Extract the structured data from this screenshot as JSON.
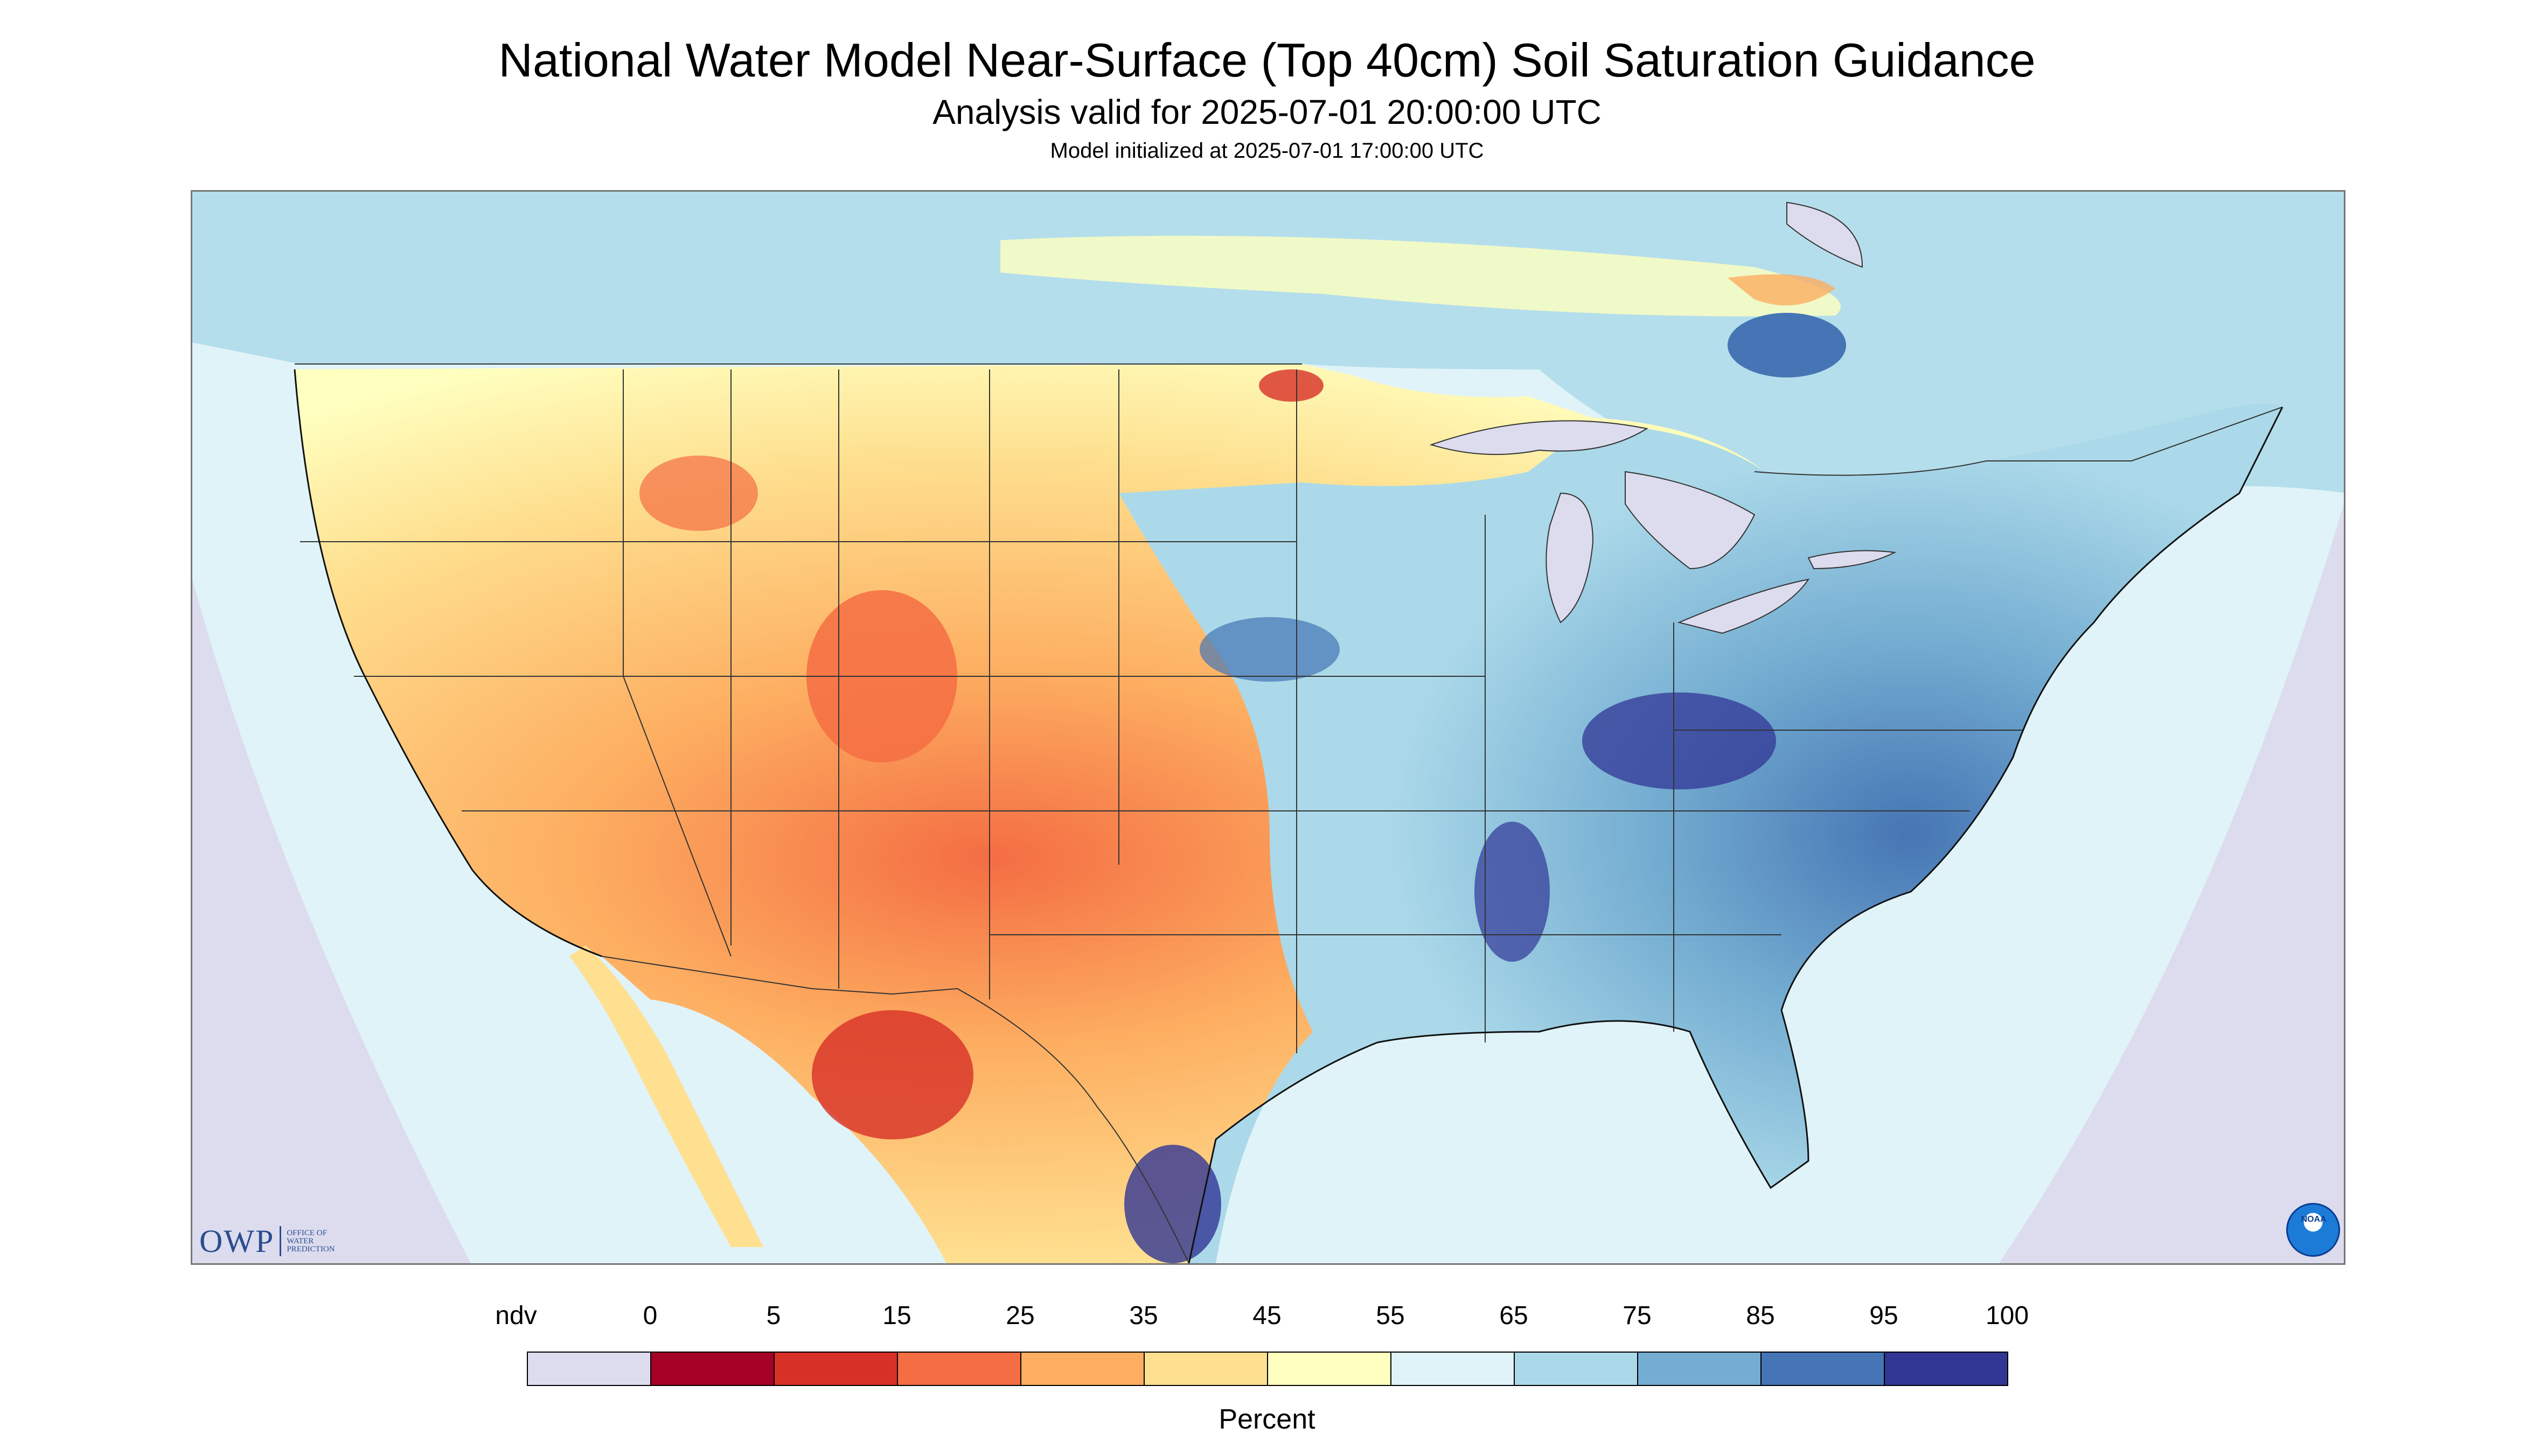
{
  "title": "National Water Model Near-Surface (Top 40cm) Soil Saturation Guidance",
  "subtitle": "Analysis valid for 2025-07-01 20:00:00 UTC",
  "init_line": "Model initialized at 2025-07-01 17:00:00 UTC",
  "legend": {
    "unit": "Percent",
    "labels": [
      "ndv",
      "0",
      "5",
      "15",
      "25",
      "35",
      "45",
      "55",
      "65",
      "75",
      "85",
      "95",
      "100"
    ],
    "colors": [
      "#dcdcee",
      "#a50026",
      "#d73027",
      "#f46d43",
      "#fdae61",
      "#fee090",
      "#ffffbf",
      "#e0f3f8",
      "#abd9e9",
      "#74add1",
      "#4575b4",
      "#313695"
    ]
  },
  "logos": {
    "owp_mark": "OWP",
    "owp_text_1": "Office of",
    "owp_text_2": "Water",
    "owp_text_3": "Prediction",
    "noaa": "NOAA"
  },
  "colors": {
    "nodata_background": "#dcdcee",
    "border_lines": "#333333"
  }
}
